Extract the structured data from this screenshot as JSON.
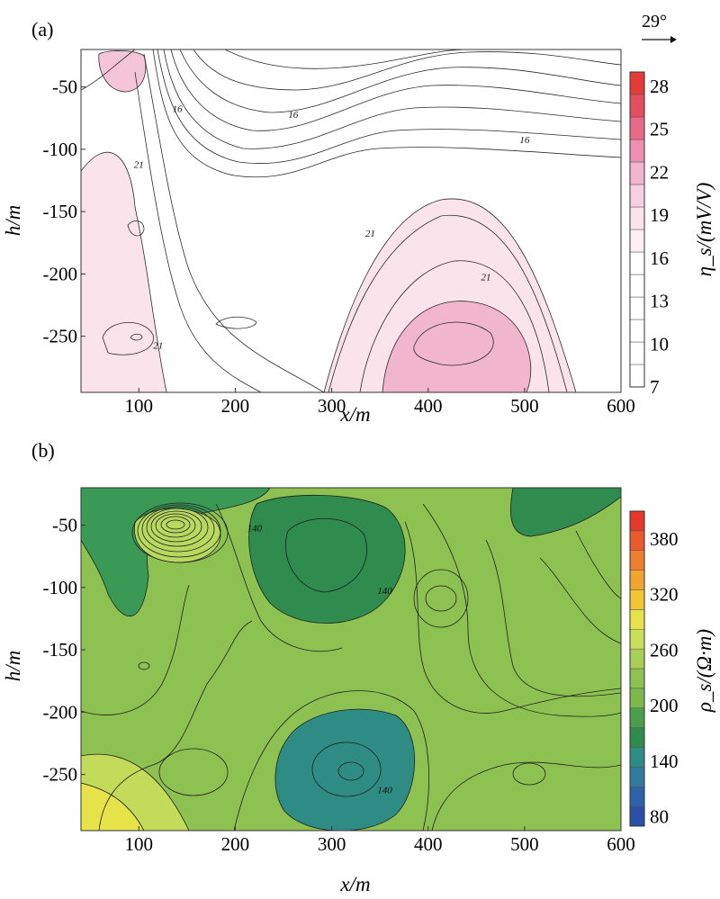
{
  "direction_annotation": "29°",
  "panels": [
    {
      "panel_label": "(a)",
      "xlabel": "x/m",
      "ylabel": "h/m",
      "colorbar_label": "η_s/(mV/V)",
      "colors": {
        "low": "#ffffff",
        "mid": "#f1c2d3",
        "high": "#e53a3a",
        "line": "#2b2b2b"
      }
    },
    {
      "panel_label": "(b)",
      "xlabel": "x/m",
      "ylabel": "h/m",
      "colorbar_label": "ρ_s/(Ω·m)",
      "colors": {
        "field": "#8dc152",
        "dark_green": "#2f8b4e",
        "teal": "#2f8c84",
        "yellow": "#e6e24a",
        "line": "#1f1f1f"
      }
    }
  ],
  "chart_data": [
    {
      "type": "heatmap",
      "title": "",
      "panel_label": "(a)",
      "xlabel": "x/m",
      "ylabel": "h/m",
      "xlim": [
        40,
        600
      ],
      "ylim": [
        -295,
        -20
      ],
      "x_ticks": [
        100,
        200,
        300,
        400,
        500,
        600
      ],
      "y_ticks": [
        -50,
        -100,
        -150,
        -200,
        -250
      ],
      "colorbar": {
        "label": "η_s/(mV/V)",
        "range": [
          7,
          29
        ],
        "ticks": [
          7,
          10,
          13,
          16,
          19,
          22,
          25,
          28
        ]
      },
      "contour_labels": [
        {
          "value": 16,
          "x": 140,
          "y": -70
        },
        {
          "value": 16,
          "x": 260,
          "y": -75
        },
        {
          "value": 16,
          "x": 500,
          "y": -95
        },
        {
          "value": 21,
          "x": 100,
          "y": -115
        },
        {
          "value": 21,
          "x": 340,
          "y": -170
        },
        {
          "value": 21,
          "x": 460,
          "y": -205
        },
        {
          "value": 21,
          "x": 120,
          "y": -260
        }
      ],
      "features": [
        {
          "kind": "high",
          "x": 100,
          "y": -35,
          "value": 23
        },
        {
          "kind": "high",
          "x": 415,
          "y": -255,
          "value": 23
        },
        {
          "kind": "high",
          "x": 100,
          "y": -250,
          "value": 21
        }
      ]
    },
    {
      "type": "heatmap",
      "title": "",
      "panel_label": "(b)",
      "xlabel": "x/m",
      "ylabel": "h/m",
      "xlim": [
        40,
        600
      ],
      "ylim": [
        -295,
        -20
      ],
      "x_ticks": [
        100,
        200,
        300,
        400,
        500,
        600
      ],
      "y_ticks": [
        -50,
        -100,
        -150,
        -200,
        -250
      ],
      "colorbar": {
        "label": "ρ_s/(Ω·m)",
        "range": [
          70,
          410
        ],
        "ticks": [
          80,
          140,
          200,
          260,
          320,
          380
        ]
      },
      "contour_labels": [
        {
          "value": 140,
          "x": 220,
          "y": -55
        },
        {
          "value": 140,
          "x": 355,
          "y": -105
        },
        {
          "value": 140,
          "x": 355,
          "y": -265
        }
      ],
      "features": [
        {
          "kind": "high",
          "x": 140,
          "y": -50,
          "value": 250
        },
        {
          "kind": "low",
          "x": 330,
          "y": -250,
          "value": 120
        },
        {
          "kind": "low",
          "x": 310,
          "y": -80,
          "value": 140
        },
        {
          "kind": "high",
          "x": 60,
          "y": -290,
          "value": 280
        }
      ]
    }
  ]
}
